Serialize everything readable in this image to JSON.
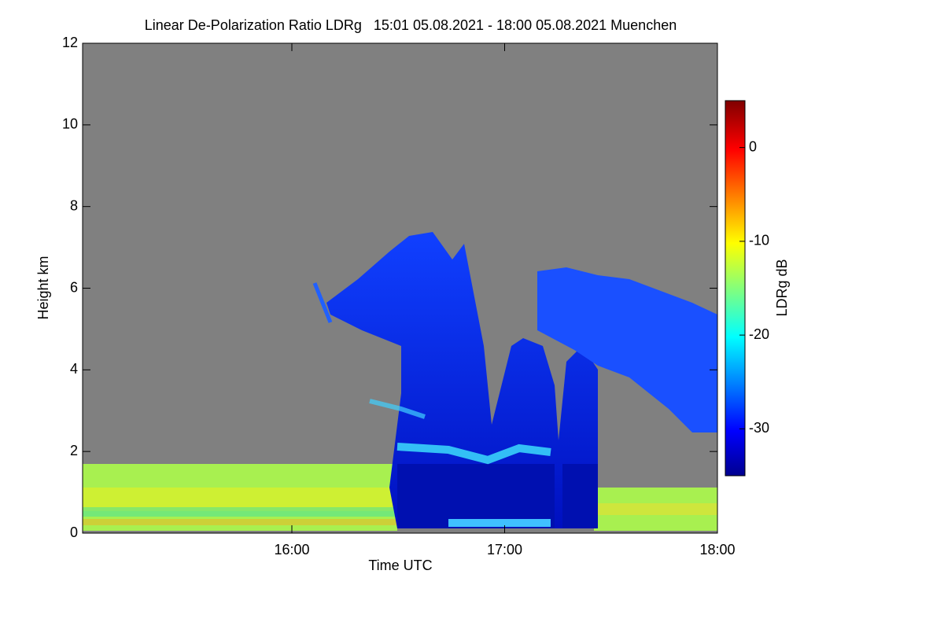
{
  "chart_data": {
    "type": "heatmap",
    "title": "Linear De-Polarization Ratio LDRg   15:01 05.08.2021 - 18:00 05.08.2021 Muenchen",
    "x_label": "Time UTC",
    "y_label": "Height km",
    "xlim": [
      901,
      1080
    ],
    "xticks": [
      {
        "value": 960,
        "label": "16:00"
      },
      {
        "value": 1020,
        "label": "17:00"
      },
      {
        "value": 1080,
        "label": "18:00"
      }
    ],
    "ylim": [
      0,
      12
    ],
    "yticks": [
      0,
      2,
      4,
      6,
      8,
      10,
      12
    ],
    "colorbar_label": "LDRg dB",
    "clim": [
      -35,
      5
    ],
    "colorbar_ticks": [
      0,
      -10,
      -20,
      -30
    ]
  }
}
